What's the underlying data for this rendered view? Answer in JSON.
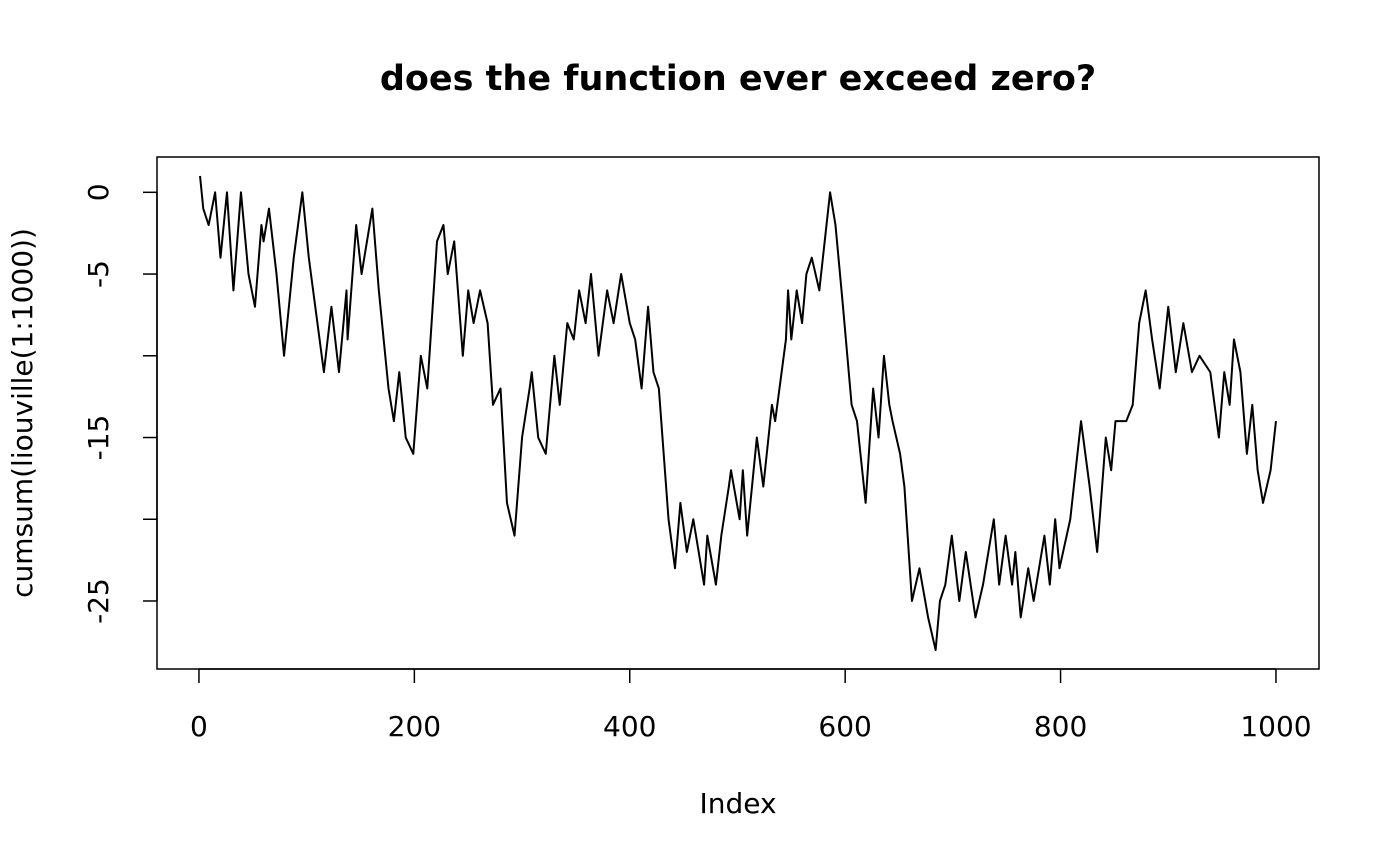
{
  "chart_data": {
    "type": "line",
    "title": "does the function ever exceed zero?",
    "xlabel": "Index",
    "ylabel": "cumsum(liouville(1:1000))",
    "color": "#000000",
    "x": [
      1,
      4,
      9,
      15,
      20,
      26,
      32,
      39,
      46,
      52,
      58,
      60,
      65,
      72,
      79,
      88,
      96,
      102,
      110,
      116,
      123,
      130,
      137,
      138,
      146,
      151,
      161,
      167,
      176,
      181,
      186,
      192,
      199,
      206,
      212,
      221,
      227,
      231,
      237,
      245,
      250,
      255,
      261,
      268,
      273,
      280,
      286,
      293,
      300,
      307,
      309,
      315,
      322,
      330,
      335,
      342,
      348,
      353,
      359,
      364,
      371,
      379,
      385,
      392,
      400,
      405,
      411,
      417,
      422,
      427,
      436,
      442,
      447,
      453,
      459,
      469,
      472,
      480,
      485,
      492,
      494,
      502,
      505,
      509,
      518,
      524,
      532,
      535,
      545,
      547,
      550,
      555,
      560,
      564,
      569,
      576,
      581,
      586,
      591,
      598,
      606,
      611,
      619,
      626,
      631,
      636,
      641,
      644,
      651,
      655,
      662,
      669,
      677,
      684,
      688,
      693,
      699,
      706,
      712,
      721,
      728,
      738,
      743,
      749,
      755,
      758,
      763,
      770,
      775,
      785,
      790,
      795,
      799,
      809,
      819,
      827,
      834,
      842,
      847,
      851,
      861,
      867,
      873,
      879,
      885,
      892,
      900,
      907,
      914,
      922,
      929,
      939,
      947,
      952,
      957,
      961,
      967,
      973,
      978,
      983,
      988,
      995,
      1000
    ],
    "values": [
      1,
      -1,
      -2,
      0,
      -4,
      0,
      -6,
      0,
      -5,
      -7,
      -2,
      -3,
      -1,
      -5,
      -10,
      -4,
      0,
      -4,
      -8,
      -11,
      -7,
      -11,
      -6,
      -9,
      -2,
      -5,
      -1,
      -6,
      -12,
      -14,
      -11,
      -15,
      -16,
      -10,
      -12,
      -3,
      -2,
      -5,
      -3,
      -10,
      -6,
      -8,
      -6,
      -8,
      -13,
      -12,
      -19,
      -21,
      -15,
      -12,
      -11,
      -15,
      -16,
      -10,
      -13,
      -8,
      -9,
      -6,
      -8,
      -5,
      -10,
      -6,
      -8,
      -5,
      -8,
      -9,
      -12,
      -7,
      -11,
      -12,
      -20,
      -23,
      -19,
      -22,
      -20,
      -24,
      -21,
      -24,
      -21,
      -18,
      -17,
      -20,
      -17,
      -21,
      -15,
      -18,
      -13,
      -14,
      -9,
      -6,
      -9,
      -6,
      -8,
      -5,
      -4,
      -6,
      -3,
      0,
      -2,
      -7,
      -13,
      -14,
      -19,
      -12,
      -15,
      -10,
      -13,
      -14,
      -16,
      -18,
      -25,
      -23,
      -26,
      -28,
      -25,
      -24,
      -21,
      -25,
      -22,
      -26,
      -24,
      -20,
      -24,
      -21,
      -24,
      -22,
      -26,
      -23,
      -25,
      -21,
      -24,
      -20,
      -23,
      -20,
      -14,
      -18,
      -22,
      -15,
      -17,
      -14,
      -14,
      -13,
      -8,
      -6,
      -9,
      -12,
      -7,
      -11,
      -8,
      -11,
      -10,
      -11,
      -15,
      -11,
      -13,
      -9,
      -11,
      -16,
      -13,
      -17,
      -19,
      -17,
      -14
    ],
    "xlim": [
      -38.96,
      1039.96
    ],
    "ylim": [
      -29.16,
      2.16
    ],
    "xticks": [
      0,
      200,
      400,
      600,
      800,
      1000
    ],
    "yticks": [
      0,
      -5,
      {
        "value": -10,
        "label": null
      },
      -15,
      {
        "value": -20,
        "label": null
      },
      -25
    ]
  }
}
